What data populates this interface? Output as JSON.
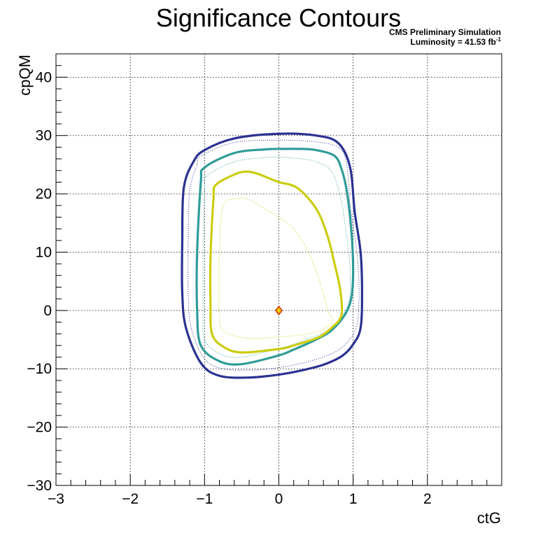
{
  "chart_data": {
    "type": "line",
    "title": "Significance Contours",
    "xlabel": "ctG",
    "ylabel": "cpQM",
    "xlim": [
      -3,
      3
    ],
    "ylim": [
      -30,
      44
    ],
    "xticks": [
      -3,
      -2,
      -1,
      0,
      1,
      2
    ],
    "xtick_labels": [
      "−3",
      "−2",
      "−1",
      "0",
      "1",
      "2"
    ],
    "yticks": [
      -30,
      -20,
      -10,
      0,
      10,
      20,
      30,
      40
    ],
    "ytick_labels": [
      "−30",
      "−20",
      "−10",
      "0",
      "10",
      "20",
      "30",
      "40"
    ],
    "grid": true,
    "annotations": {
      "experiment": "CMS Preliminary Simulation",
      "luminosity_prefix": "Luminosity = 41.53 fb",
      "luminosity_exponent": "-1"
    },
    "best_fit": {
      "x": 0.0,
      "y": 0.0,
      "fill": "#e8d000",
      "stroke": "#e03000"
    },
    "series": [
      {
        "color": "#2c3192",
        "style": "solid",
        "width": 3.2,
        "x": [
          -1.0,
          -0.6,
          0.0,
          0.5,
          0.8,
          0.96,
          1.02,
          1.1,
          1.12,
          1.1,
          1.0,
          0.85,
          0.6,
          0.3,
          0.0,
          -0.4,
          -0.8,
          -1.05,
          -1.25,
          -1.3,
          -1.3,
          -1.28,
          -1.15,
          -1.0
        ],
        "y": [
          27.5,
          29.5,
          30.3,
          30.0,
          28.7,
          24.5,
          17.0,
          10.0,
          3.0,
          -3.0,
          -5.8,
          -7.8,
          -9.3,
          -10.3,
          -11.0,
          -11.5,
          -11.2,
          -9.0,
          -3.0,
          3.0,
          12.0,
          21.0,
          25.5,
          27.5
        ]
      },
      {
        "color": "#2c3192",
        "style": "dotted",
        "width": 1,
        "x": [
          -1.05,
          -0.6,
          0.0,
          0.5,
          0.82,
          0.92,
          0.96,
          1.05,
          1.08,
          1.05,
          0.95,
          0.8,
          0.55,
          0.25,
          0.0,
          -0.35,
          -0.75,
          -1.0,
          -1.18,
          -1.22,
          -1.22,
          -1.2,
          -1.1,
          -1.05
        ],
        "y": [
          26.5,
          28.8,
          29.2,
          28.9,
          27.8,
          24.5,
          18.0,
          10.0,
          3.0,
          -2.5,
          -5.0,
          -6.8,
          -8.2,
          -9.2,
          -9.8,
          -10.2,
          -10.0,
          -8.3,
          -3.0,
          3.0,
          12.0,
          20.5,
          25.0,
          26.5
        ]
      },
      {
        "color": "#2f9c98",
        "style": "solid",
        "width": 3.2,
        "x": [
          -1.0,
          -0.6,
          -0.2,
          0.0,
          0.3,
          0.5,
          0.75,
          0.85,
          0.92,
          0.98,
          1.0,
          0.98,
          0.9,
          0.7,
          0.45,
          0.2,
          0.0,
          -0.5,
          -0.8,
          -1.05,
          -1.1,
          -1.1,
          -1.05,
          -1.0
        ],
        "y": [
          24.5,
          27.0,
          27.6,
          27.7,
          27.7,
          27.5,
          26.5,
          24.0,
          20.0,
          13.0,
          7.0,
          2.5,
          -0.5,
          -3.5,
          -5.3,
          -6.7,
          -7.7,
          -9.2,
          -8.7,
          -6.0,
          0.0,
          10.0,
          22.0,
          24.5
        ]
      },
      {
        "color": "#2f9c98",
        "style": "dotted",
        "width": 1,
        "x": [
          -0.98,
          -0.6,
          -0.2,
          0.0,
          0.3,
          0.5,
          0.7,
          0.82,
          0.9,
          0.96,
          0.95,
          0.85,
          0.65,
          0.4,
          0.2,
          0.0,
          -0.5,
          -0.78,
          -1.0,
          -1.02,
          -1.02,
          -1.0,
          -0.98
        ],
        "y": [
          23.0,
          25.5,
          26.2,
          26.3,
          26.0,
          25.5,
          24.0,
          20.0,
          14.0,
          7.0,
          2.0,
          -1.0,
          -3.5,
          -4.8,
          -5.8,
          -6.5,
          -8.0,
          -7.5,
          -5.0,
          0.0,
          10.0,
          21.0,
          23.0
        ]
      },
      {
        "color": "#cccc10",
        "style": "solid",
        "width": 3.2,
        "x": [
          -0.85,
          -0.6,
          -0.45,
          -0.3,
          -0.1,
          0.0,
          0.25,
          0.5,
          0.65,
          0.75,
          0.82,
          0.85,
          0.82,
          0.75,
          0.55,
          0.2,
          0.0,
          -0.5,
          -0.75,
          -0.9,
          -0.92,
          -0.92,
          -0.88,
          -0.85
        ],
        "y": [
          21.5,
          23.3,
          23.8,
          23.5,
          22.5,
          22.0,
          21.0,
          17.5,
          13.0,
          8.0,
          4.0,
          0.0,
          -1.5,
          -2.5,
          -4.5,
          -6.0,
          -6.6,
          -7.2,
          -6.2,
          -4.0,
          1.0,
          9.0,
          19.0,
          21.5
        ]
      },
      {
        "color": "#cccc10",
        "style": "dotted",
        "width": 1,
        "x": [
          -0.75,
          -0.55,
          -0.4,
          -0.2,
          0.0,
          0.2,
          0.4,
          0.55,
          0.66,
          0.72,
          0.68,
          0.55,
          0.3,
          0.0,
          -0.4,
          -0.75,
          -0.8,
          -0.8,
          -0.75
        ],
        "y": [
          18.0,
          19.2,
          19.0,
          17.5,
          16.0,
          14.0,
          10.0,
          5.0,
          0.0,
          -1.5,
          -2.5,
          -3.5,
          -4.2,
          -4.5,
          -4.8,
          -3.5,
          0.0,
          10.0,
          18.0
        ]
      }
    ]
  }
}
